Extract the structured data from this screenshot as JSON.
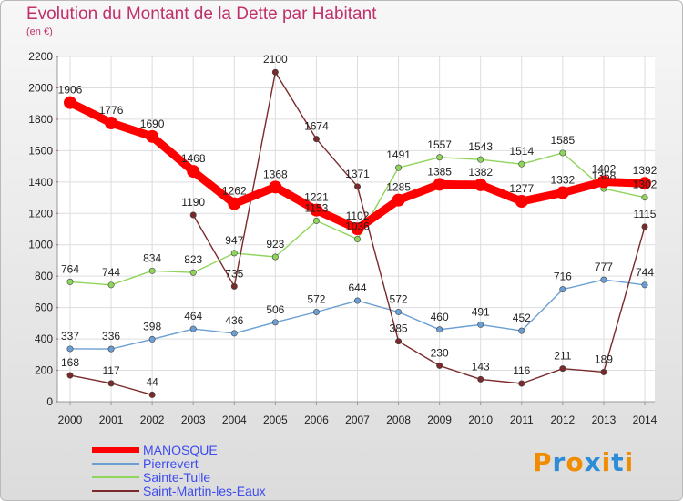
{
  "chart_data": {
    "type": "line",
    "title": "Evolution du Montant de la Dette par Habitant",
    "subtitle": "(en €)",
    "x": [
      "2000",
      "2001",
      "2002",
      "2003",
      "2004",
      "2005",
      "2006",
      "2007",
      "2008",
      "2009",
      "2010",
      "2011",
      "2012",
      "2013",
      "2014"
    ],
    "ylim": [
      0,
      2200
    ],
    "yticks": [
      0,
      200,
      400,
      600,
      800,
      1000,
      1200,
      1400,
      1600,
      1800,
      2000,
      2200
    ],
    "grid": true,
    "legend_position": "bottom-left",
    "series": [
      {
        "name": "MANOSQUE",
        "color": "#ff0000",
        "values": [
          1906,
          1776,
          1690,
          1468,
          1262,
          1368,
          1221,
          1102,
          1285,
          1385,
          1382,
          1277,
          1332,
          1402,
          1392
        ]
      },
      {
        "name": "Pierrevert",
        "color": "#6b9fd4",
        "values": [
          337,
          336,
          398,
          464,
          436,
          506,
          572,
          644,
          572,
          460,
          491,
          452,
          716,
          777,
          744
        ]
      },
      {
        "name": "Sainte-Tulle",
        "color": "#8fd55c",
        "values": [
          764,
          744,
          834,
          823,
          947,
          923,
          1153,
          1036,
          1491,
          1557,
          1543,
          1514,
          1585,
          1358,
          1302
        ]
      },
      {
        "name": "Saint-Martin-les-Eaux",
        "color": "#7a2a2a",
        "values": [
          168,
          117,
          44,
          1190,
          735,
          2100,
          1674,
          1371,
          385,
          230,
          143,
          116,
          211,
          189,
          1115
        ]
      }
    ],
    "series_segments": [
      null,
      null,
      null,
      [
        [
          0,
          2
        ],
        [
          3,
          14
        ]
      ]
    ],
    "value_labels": {
      "MANOSQUE": [
        "1906",
        "1776",
        "1690",
        "1468",
        "1262",
        "1368",
        "1221",
        "1102",
        "1285",
        "1385",
        "1382",
        "1277",
        "1332",
        "1402",
        "1392"
      ],
      "Pierrevert": [
        "337",
        "336",
        "398",
        "464",
        "436",
        "506",
        "572",
        "644",
        "572",
        "460",
        "491",
        "452",
        "716",
        "777",
        "744"
      ],
      "Sainte-Tulle": [
        "764",
        "744",
        "834",
        "823",
        "947",
        "923",
        "1153",
        "1036",
        "1491",
        "1557",
        "1543",
        "1514",
        "1585",
        "1358",
        "1302"
      ],
      "Saint-Martin-les-Eaux": [
        "168",
        "117",
        "44",
        "1190",
        "735",
        "2100",
        "1674",
        "1371",
        "385",
        "230",
        "143",
        "116",
        "211",
        "189",
        "1115"
      ]
    }
  },
  "logo": {
    "text": "Proxiti",
    "colors": [
      "#f08c00",
      "#2e8bd6",
      "#f08c00",
      "#2e8bd6",
      "#f08c00",
      "#2e8bd6",
      "#f08c00"
    ]
  }
}
